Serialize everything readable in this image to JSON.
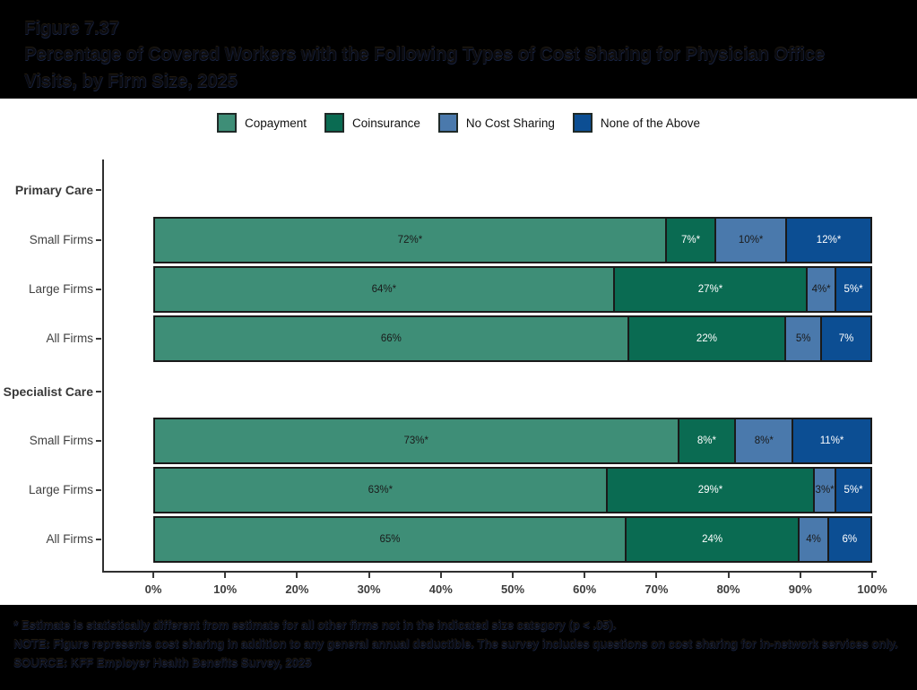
{
  "header": {
    "figure_label": "Figure 7.37",
    "title": "Percentage of Covered Workers with the Following Types of Cost Sharing for Physician Office Visits, by Firm Size, 2025"
  },
  "colors": {
    "copayment": "#3E8E77",
    "coinsurance": "#0A6B52",
    "no_cost_sharing": "#4A79AC",
    "none_of_the_above": "#0C4E93",
    "segment_border": "#1a1a1a",
    "panel_background": "#ffffff",
    "page_background": "#000000"
  },
  "chart_data": {
    "type": "bar",
    "subtype": "horizontal-stacked-100pct",
    "series": [
      {
        "name": "Copayment",
        "color": "#3E8E77",
        "label_color": "#1a1a1a"
      },
      {
        "name": "Coinsurance",
        "color": "#0A6B52",
        "label_color": "#ffffff"
      },
      {
        "name": "No Cost Sharing",
        "color": "#4A79AC",
        "label_color": "#1a1a1a"
      },
      {
        "name": "None of the Above",
        "color": "#0C4E93",
        "label_color": "#ffffff"
      }
    ],
    "groups": [
      {
        "group": "Primary Care",
        "rows": [
          {
            "label": "Small Firms",
            "values": [
              72,
              7,
              10,
              12
            ],
            "value_labels": [
              "72%*",
              "7%*",
              "10%*",
              "12%*"
            ]
          },
          {
            "label": "Large Firms",
            "values": [
              64,
              27,
              4,
              5
            ],
            "value_labels": [
              "64%*",
              "27%*",
              "4%*",
              "5%*"
            ]
          },
          {
            "label": "All Firms",
            "values": [
              66,
              22,
              5,
              7
            ],
            "value_labels": [
              "66%",
              "22%",
              "5%",
              "7%"
            ]
          }
        ]
      },
      {
        "group": "Specialist Care",
        "rows": [
          {
            "label": "Small Firms",
            "values": [
              73,
              8,
              8,
              11
            ],
            "value_labels": [
              "73%*",
              "8%*",
              "8%*",
              "11%*"
            ]
          },
          {
            "label": "Large Firms",
            "values": [
              63,
              29,
              3,
              5
            ],
            "value_labels": [
              "63%*",
              "29%*",
              "3%*",
              "5%*"
            ]
          },
          {
            "label": "All Firms",
            "values": [
              65,
              24,
              4,
              6
            ],
            "value_labels": [
              "65%",
              "24%",
              "4%",
              "6%"
            ]
          }
        ]
      }
    ],
    "x_ticks": [
      "0%",
      "10%",
      "20%",
      "30%",
      "40%",
      "50%",
      "60%",
      "70%",
      "80%",
      "90%",
      "100%"
    ],
    "xlim": [
      0,
      100
    ],
    "grid": false,
    "legend_position": "top-center",
    "title": "Percentage of Covered Workers with the Following Types of Cost Sharing for Physician Office Visits, by Firm Size, 2025"
  },
  "footnotes": {
    "asterisk": "* Estimate is statistically different from estimate for all other firms not in the indicated size category (p < .05).",
    "note": "NOTE: Figure represents cost sharing in addition to any general annual deductible. The survey includes questions on cost sharing for in-network services only.",
    "source": "SOURCE: KFF Employer Health Benefits Survey, 2025"
  }
}
